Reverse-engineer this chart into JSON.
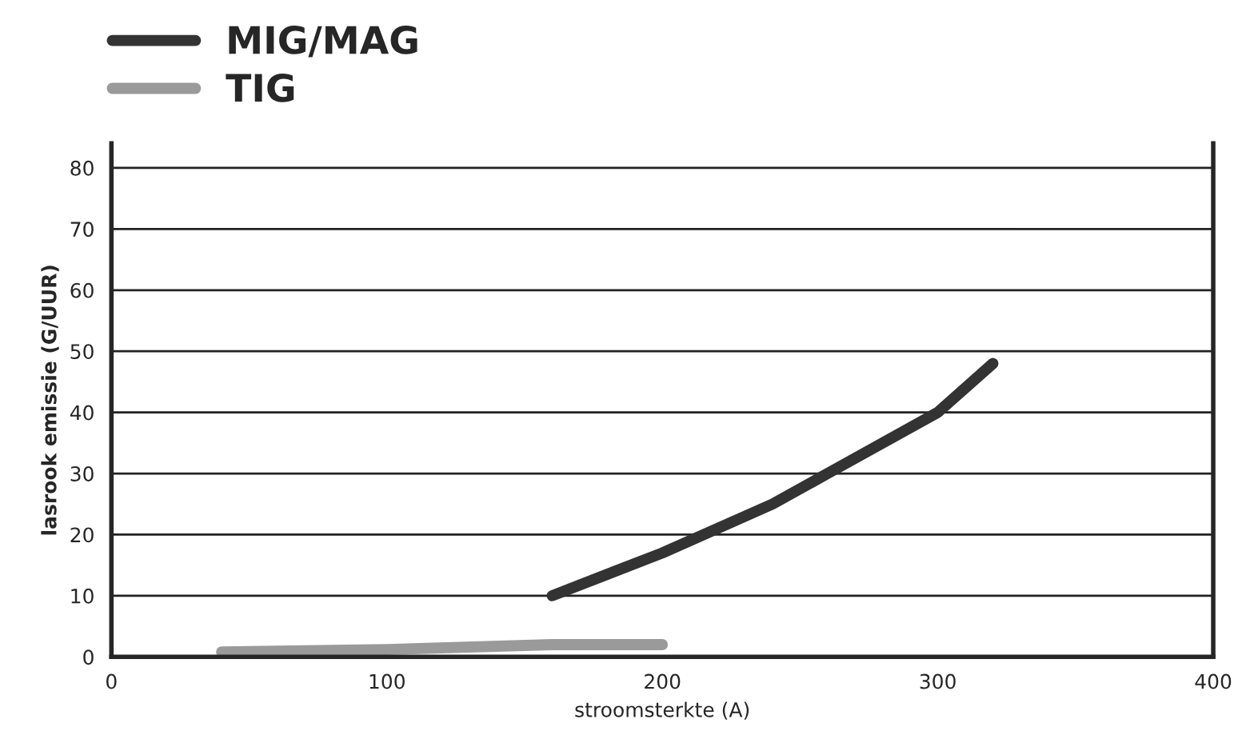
{
  "chart_data": {
    "type": "line",
    "xlabel": "stroomsterkte (A)",
    "ylabel": "lasrook emissie (G/UUR)",
    "series": [
      {
        "name": "MIG/MAG",
        "color": "#333333",
        "x": [
          160,
          200,
          240,
          260,
          300,
          320
        ],
        "values": [
          10,
          17,
          25,
          30,
          40,
          48
        ]
      },
      {
        "name": "TIG",
        "color": "#9a9a9a",
        "x": [
          40,
          100,
          160,
          200
        ],
        "values": [
          0.8,
          1.2,
          2,
          2
        ]
      }
    ],
    "xlim": [
      0,
      400
    ],
    "xticks": [
      0,
      100,
      200,
      300,
      400
    ],
    "ylim": [
      0,
      84
    ],
    "yticks": [
      0,
      10,
      20,
      30,
      40,
      50,
      60,
      70,
      80
    ],
    "grid": "y",
    "legend": "top left",
    "marker": "none",
    "line_style": "solid"
  }
}
